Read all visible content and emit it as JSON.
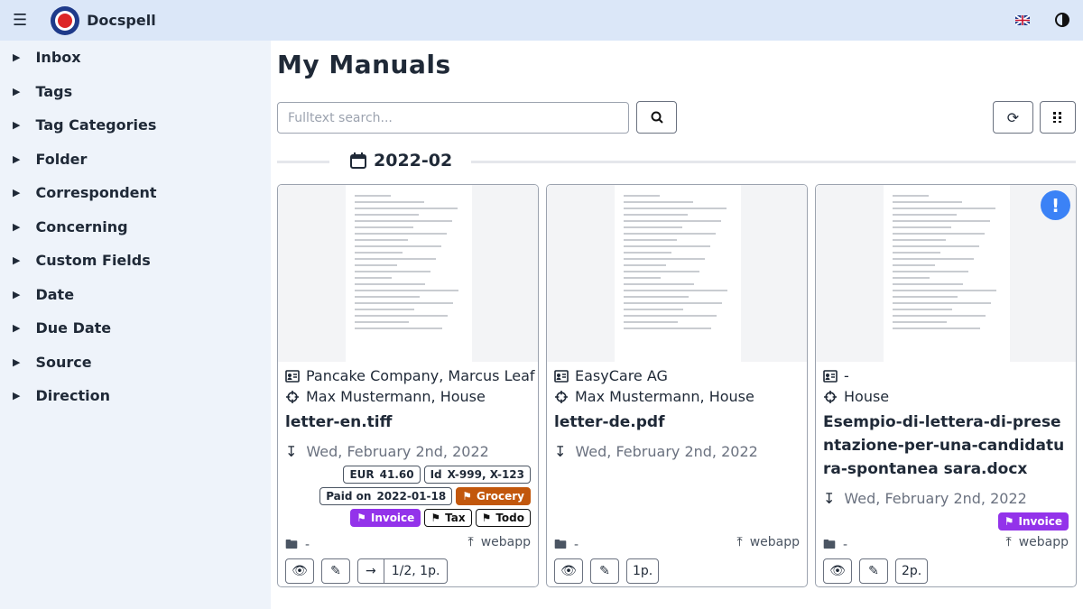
{
  "header": {
    "app_name": "Docspell"
  },
  "sidebar": {
    "items": [
      "Inbox",
      "Tags",
      "Tag Categories",
      "Folder",
      "Correspondent",
      "Concerning",
      "Custom Fields",
      "Date",
      "Due Date",
      "Source",
      "Direction"
    ]
  },
  "main": {
    "title": "My Manuals",
    "search_placeholder": "Fulltext search...",
    "group_label": "2022-02",
    "cards": [
      {
        "correspondent": "Pancake Company, Marcus Leaf",
        "concerning": "Max Mustermann, House",
        "name": "letter-en.tiff",
        "date": "Wed, February 2nd, 2022",
        "fields": [
          {
            "label": "EUR",
            "value": "41.60"
          },
          {
            "label": "Id",
            "value": "X-999, X-123"
          },
          {
            "label": "Paid on",
            "value": "2022-01-18"
          }
        ],
        "tags": [
          {
            "name": "Grocery",
            "color": "#c2570c"
          },
          {
            "name": "Invoice",
            "color": "#9333ea"
          },
          {
            "name": "Tax",
            "color": "#ffffff"
          },
          {
            "name": "Todo",
            "color": "#ffffff"
          }
        ],
        "folder": "-",
        "source": "webapp",
        "pages": "1/2, 1p."
      },
      {
        "correspondent": "EasyCare AG",
        "concerning": "Max Mustermann, House",
        "name": "letter-de.pdf",
        "date": "Wed, February 2nd, 2022",
        "fields": [],
        "tags": [],
        "folder": "-",
        "source": "webapp",
        "pages": "1p."
      },
      {
        "correspondent": "-",
        "concerning": "House",
        "name": "Esempio-di-lettera-di-presentazione-per-una-candidatura-spontanea sara.docx",
        "date": "Wed, February 2nd, 2022",
        "fields": [],
        "tags": [
          {
            "name": "Invoice",
            "color": "#9333ea"
          }
        ],
        "folder": "-",
        "source": "webapp",
        "pages": "2p."
      }
    ]
  }
}
